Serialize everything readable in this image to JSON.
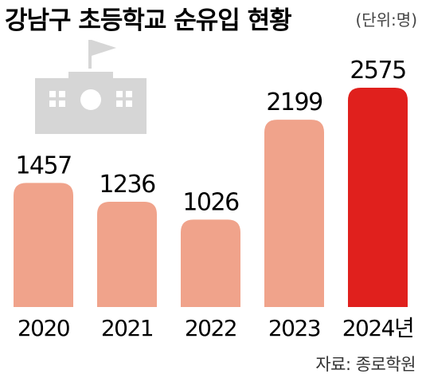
{
  "title": "강남구 초등학교 순유입 현황",
  "unit": "(단위:명)",
  "source": "자료: 종로학원",
  "colors": {
    "bar": "#f0a38b",
    "highlight": "#e0201d",
    "icon": "#d6d6d6",
    "text": "#1a1a1a"
  },
  "icon": "school-building-icon",
  "chart_data": {
    "type": "bar",
    "categories": [
      "2020",
      "2021",
      "2022",
      "2023",
      "2024년"
    ],
    "values": [
      1457,
      1236,
      1026,
      2199,
      2575
    ],
    "highlight_index": 4,
    "ylim": [
      0,
      2575
    ]
  }
}
